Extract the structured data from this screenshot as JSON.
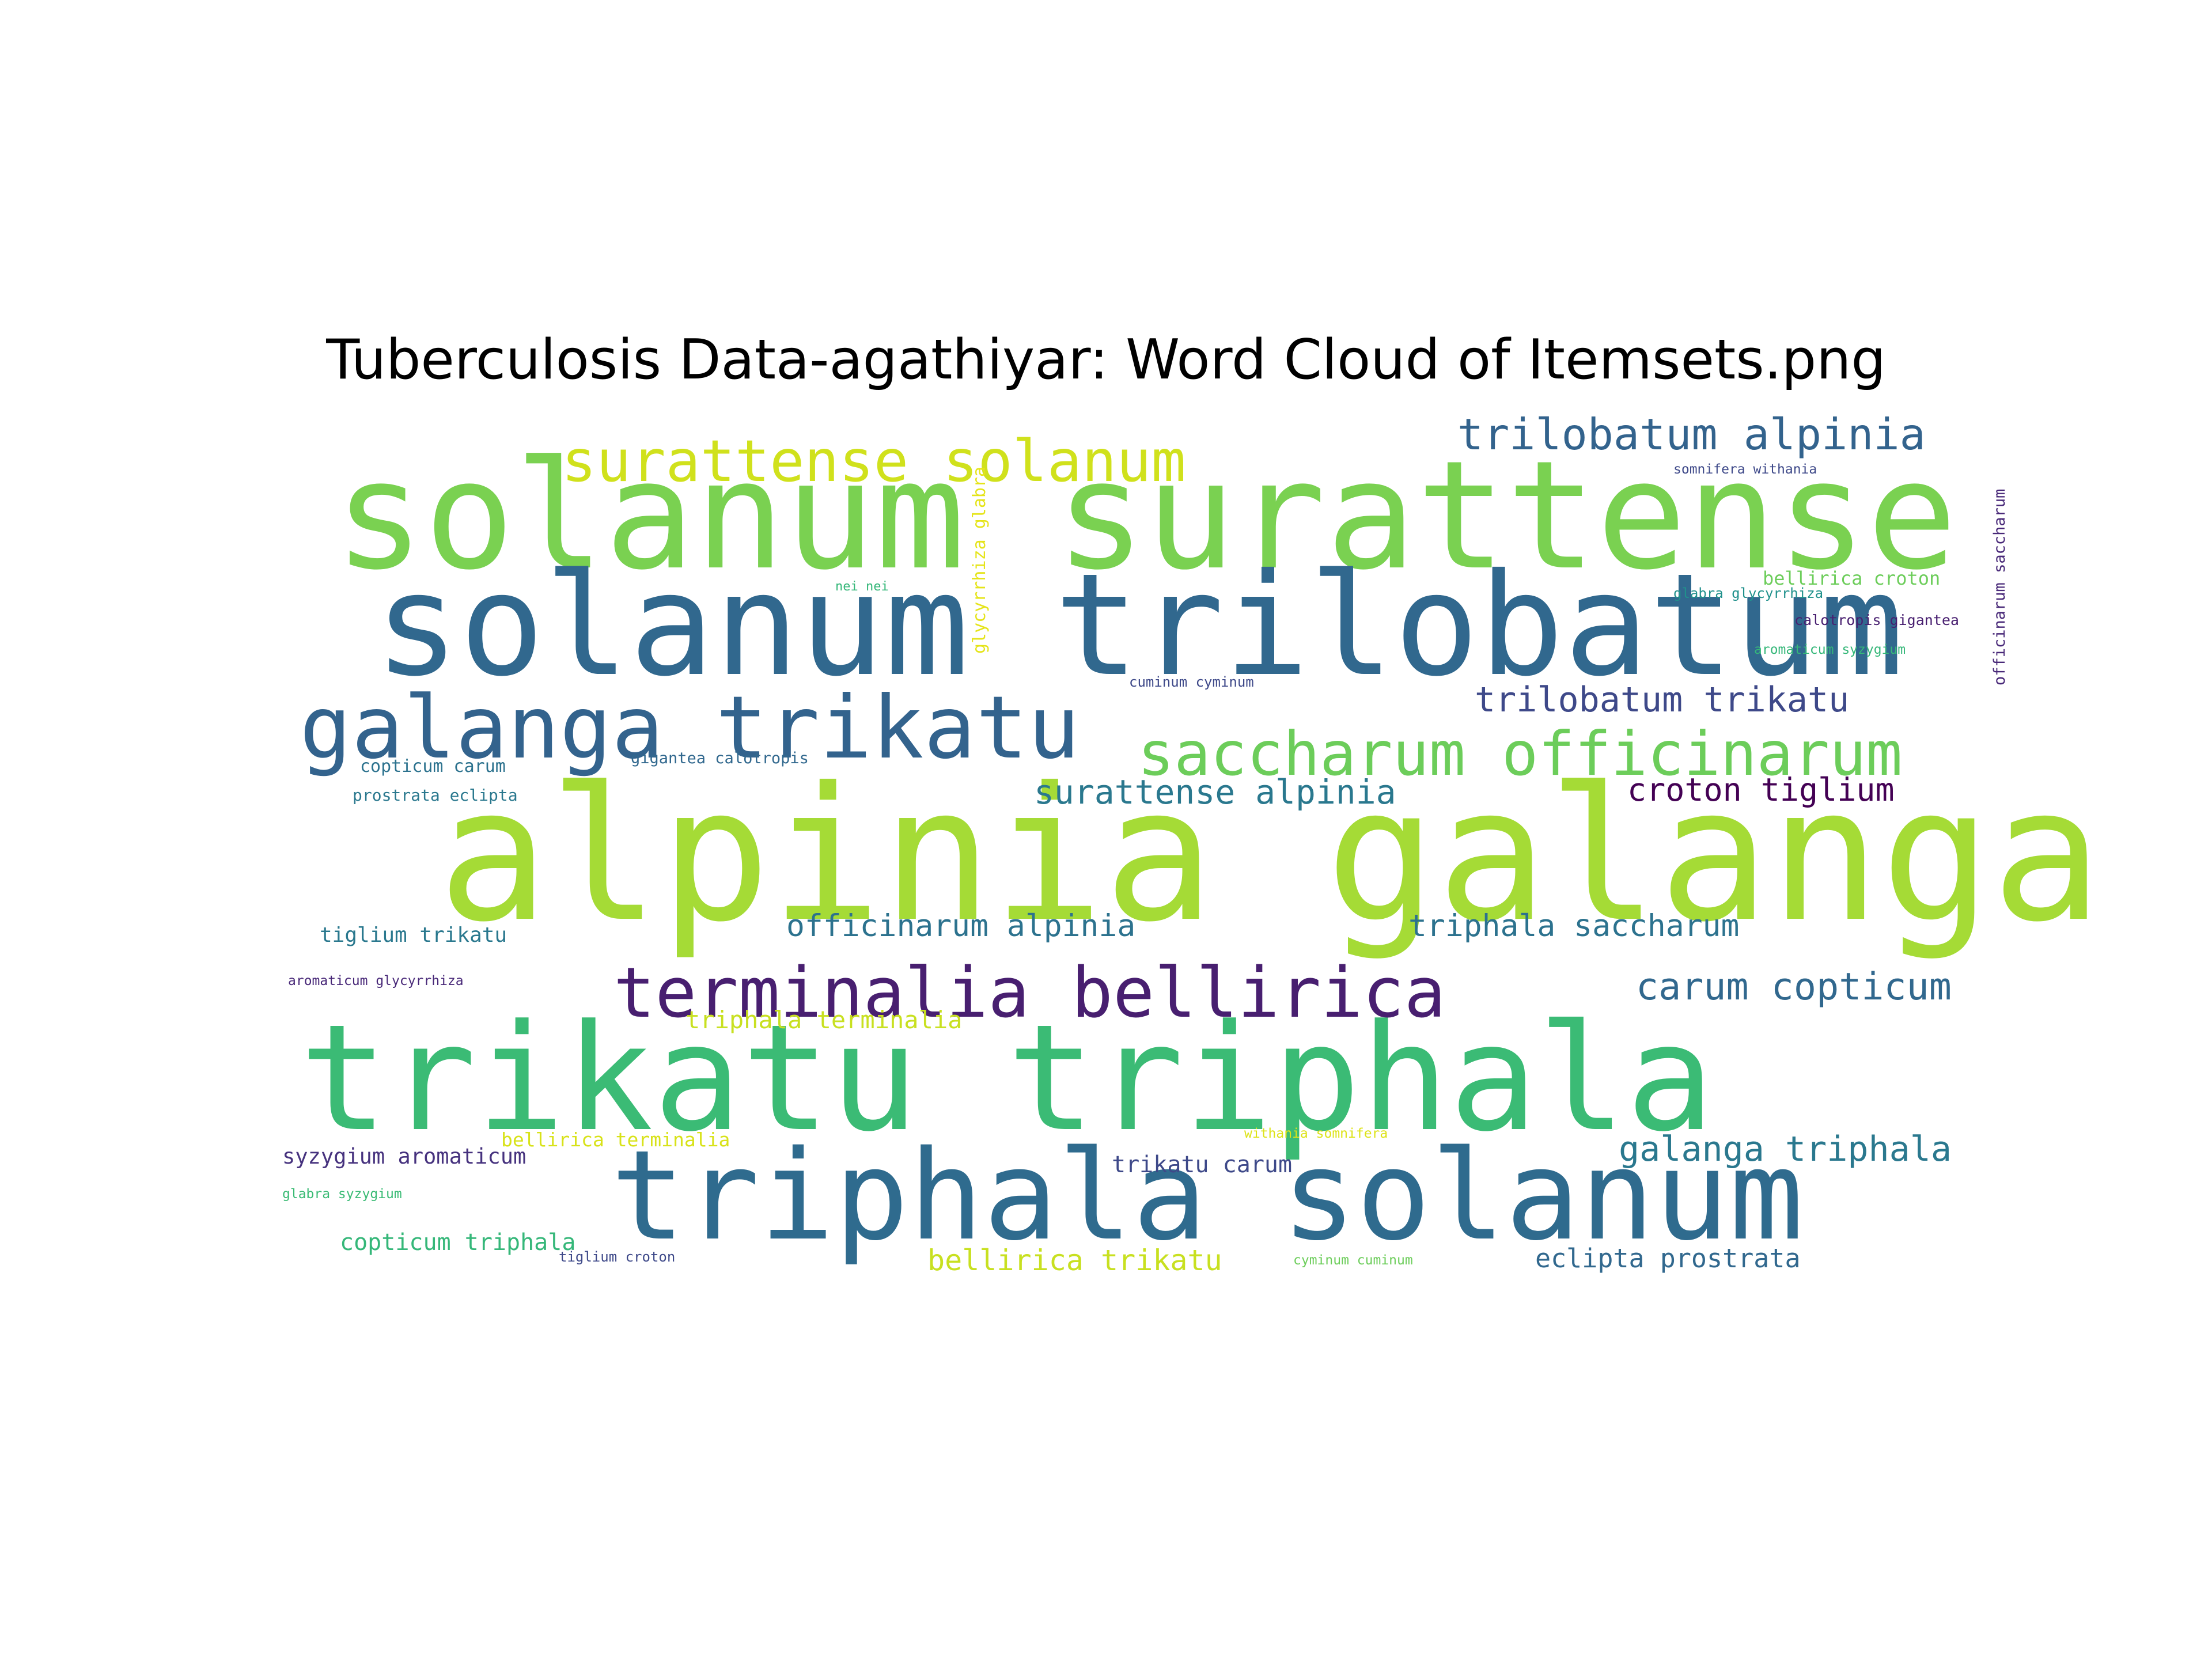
{
  "title": "Tuberculosis Data-agathiyar: Word Cloud of Itemsets.png",
  "words": [
    {
      "text": "alpinia galanga",
      "color": "#a5db36"
    },
    {
      "text": "solanum surattense",
      "color": "#7ad151"
    },
    {
      "text": "solanum trilobatum",
      "color": "#31688e"
    },
    {
      "text": "trikatu triphala",
      "color": "#3bbb75"
    },
    {
      "text": "triphala solanum",
      "color": "#2f6b8e"
    },
    {
      "text": "galanga trikatu",
      "color": "#33638d"
    },
    {
      "text": "terminalia bellirica",
      "color": "#481f70"
    },
    {
      "text": "surattense solanum",
      "color": "#d0e11c"
    },
    {
      "text": "saccharum officinarum",
      "color": "#6ccd5a"
    },
    {
      "text": "trilobatum alpinia",
      "color": "#33638d"
    },
    {
      "text": "trilobatum trikatu",
      "color": "#3e4989"
    },
    {
      "text": "surattense alpinia",
      "color": "#2a788e"
    },
    {
      "text": "croton tiglium",
      "color": "#440154"
    },
    {
      "text": "officinarum alpinia",
      "color": "#2c728e"
    },
    {
      "text": "triphala saccharum",
      "color": "#2c728e"
    },
    {
      "text": "carum copticum",
      "color": "#31688e"
    },
    {
      "text": "galanga triphala",
      "color": "#2a788e"
    },
    {
      "text": "triphala terminalia",
      "color": "#c8e020"
    },
    {
      "text": "bellirica trikatu",
      "color": "#c8e020"
    },
    {
      "text": "eclipta prostrata",
      "color": "#31688e"
    },
    {
      "text": "trikatu carum",
      "color": "#3e4989"
    },
    {
      "text": "copticum triphala",
      "color": "#35b779"
    },
    {
      "text": "syzygium aromaticum",
      "color": "#46327e"
    },
    {
      "text": "bellirica terminalia",
      "color": "#d8e219"
    },
    {
      "text": "tiglium trikatu",
      "color": "#2a788e"
    },
    {
      "text": "copticum carum",
      "color": "#2c728e"
    },
    {
      "text": "prostrata eclipta",
      "color": "#2a788e"
    },
    {
      "text": "gigantea calotropis",
      "color": "#31688e"
    },
    {
      "text": "cuminum cyminum",
      "color": "#3e4989"
    },
    {
      "text": "glycyrrhiza glabra",
      "color": "#e5e419"
    },
    {
      "text": "nei nei",
      "color": "#35b779"
    },
    {
      "text": "somnifera withania",
      "color": "#3e4989"
    },
    {
      "text": "officinarum saccharum",
      "color": "#482878"
    },
    {
      "text": "bellirica croton",
      "color": "#6ccd5a"
    },
    {
      "text": "glabra glycyrrhiza",
      "color": "#21918c"
    },
    {
      "text": "calotropis gigantea",
      "color": "#481f70"
    },
    {
      "text": "aromaticum syzygium",
      "color": "#35b779"
    },
    {
      "text": "aromaticum glycyrrhiza",
      "color": "#482878"
    },
    {
      "text": "glabra syzygium",
      "color": "#3bbb75"
    },
    {
      "text": "tiglium croton",
      "color": "#3e4989"
    },
    {
      "text": "withania somnifera",
      "color": "#dde318"
    },
    {
      "text": "cyminum cuminum",
      "color": "#6ccd5a"
    }
  ]
}
